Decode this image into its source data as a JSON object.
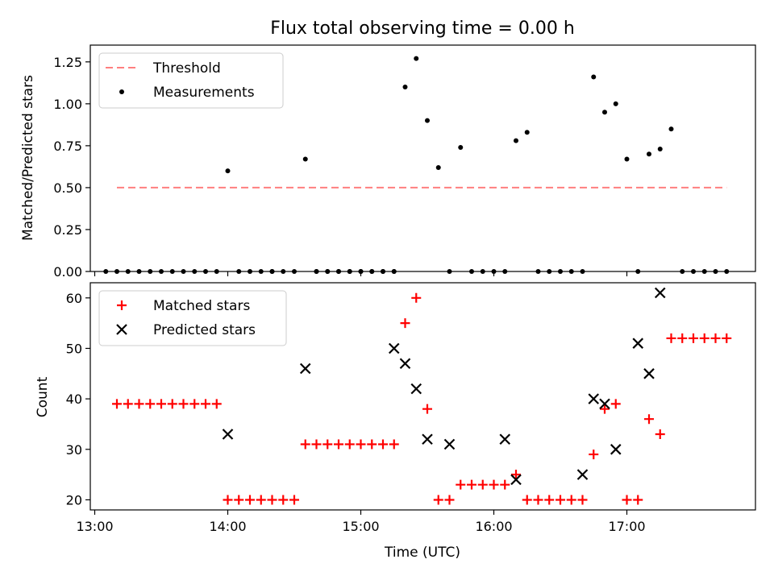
{
  "chart_data": [
    {
      "type": "scatter",
      "title": "Flux total observing time = 0.00 h",
      "xlabel": "",
      "ylabel": "Matched/Predicted stars",
      "ylim": [
        0,
        1.35
      ],
      "yticks": [
        0.0,
        0.25,
        0.5,
        0.75,
        1.0,
        1.25
      ],
      "ytick_labels": [
        "0.00",
        "0.25",
        "0.50",
        "0.75",
        "1.00",
        "1.25"
      ],
      "xlim": [
        "12:58",
        "17:58"
      ],
      "xticks": [
        "13:00",
        "14:00",
        "15:00",
        "16:00",
        "17:00"
      ],
      "legend": {
        "placement": "top-left",
        "entries": [
          {
            "name": "Threshold",
            "style": "dashed-line",
            "color": "#ff7f7f"
          },
          {
            "name": "Measurements",
            "style": "dot",
            "color": "#000000"
          }
        ]
      },
      "threshold": {
        "name": "Threshold",
        "y": 0.5,
        "x_start": "13:10",
        "x_end": "17:45",
        "color": "#ff7f7f"
      },
      "series": [
        {
          "name": "Measurements",
          "color": "#000000",
          "marker": "dot",
          "x": [
            "13:10",
            "13:15",
            "13:20",
            "13:25",
            "13:30",
            "13:35",
            "13:40",
            "13:45",
            "13:50",
            "13:55",
            "14:00",
            "14:05",
            "14:10",
            "14:15",
            "14:20",
            "14:25",
            "14:30",
            "14:35",
            "14:40",
            "14:45",
            "14:50",
            "14:55",
            "15:00",
            "15:05",
            "15:10",
            "15:15",
            "15:20",
            "15:25",
            "15:30",
            "15:35",
            "15:40",
            "15:45",
            "15:50",
            "15:55",
            "16:00",
            "16:05",
            "16:10",
            "16:15",
            "16:20",
            "16:25",
            "16:30",
            "16:35",
            "16:40",
            "16:45",
            "16:50",
            "16:55",
            "17:00",
            "17:05",
            "17:10",
            "17:15",
            "17:20",
            "17:25",
            "17:30",
            "17:35",
            "17:40",
            "17:45",
            "13:05",
            "14:20",
            "14:40",
            "14:45",
            "14:50",
            "14:55",
            "15:00",
            "15:05",
            "15:10",
            "15:15"
          ],
          "y": [
            0,
            0,
            0,
            0,
            0,
            0,
            0,
            0,
            0,
            0,
            0.6,
            0,
            0,
            0,
            0,
            0,
            0,
            0.67,
            0,
            0,
            0,
            0,
            0,
            0,
            0,
            0,
            1.1,
            1.27,
            0.9,
            0.62,
            0,
            0.74,
            0,
            0,
            0,
            0,
            0.78,
            0.83,
            0,
            0,
            0,
            0,
            0,
            1.16,
            0.95,
            1.0,
            0.67,
            0,
            0.7,
            0.73,
            0.85,
            0,
            0,
            0,
            0,
            0,
            0,
            0,
            0,
            0,
            0,
            0,
            0,
            0,
            0,
            0
          ]
        }
      ]
    },
    {
      "type": "scatter",
      "title": "",
      "xlabel": "Time (UTC)",
      "ylabel": "Count",
      "ylim": [
        18,
        63
      ],
      "yticks": [
        20,
        30,
        40,
        50,
        60
      ],
      "ytick_labels": [
        "20",
        "30",
        "40",
        "50",
        "60"
      ],
      "xlim": [
        "12:58",
        "17:58"
      ],
      "xticks": [
        "13:00",
        "14:00",
        "15:00",
        "16:00",
        "17:00"
      ],
      "xtick_labels": [
        "13:00",
        "14:00",
        "15:00",
        "16:00",
        "17:00"
      ],
      "legend": {
        "placement": "top-left",
        "entries": [
          {
            "name": "Matched stars",
            "style": "plus",
            "color": "#ff0000"
          },
          {
            "name": "Predicted stars",
            "style": "x",
            "color": "#000000"
          }
        ]
      },
      "series": [
        {
          "name": "Matched stars",
          "color": "#ff0000",
          "marker": "plus",
          "x": [
            "13:10",
            "13:15",
            "13:20",
            "13:25",
            "13:30",
            "13:35",
            "13:40",
            "13:45",
            "13:50",
            "13:55",
            "14:00",
            "14:05",
            "14:10",
            "14:15",
            "14:20",
            "14:25",
            "14:30",
            "14:35",
            "14:40",
            "14:45",
            "14:50",
            "14:55",
            "15:00",
            "15:05",
            "15:10",
            "15:15",
            "15:20",
            "15:25",
            "15:30",
            "15:35",
            "15:40",
            "15:45",
            "15:50",
            "15:55",
            "16:00",
            "16:05",
            "16:10",
            "16:15",
            "16:20",
            "16:25",
            "16:30",
            "16:35",
            "16:40",
            "16:45",
            "16:50",
            "16:55",
            "17:00",
            "17:05",
            "17:10",
            "17:15",
            "17:20",
            "17:25",
            "17:30",
            "17:35",
            "17:40",
            "17:45"
          ],
          "y": [
            39,
            39,
            39,
            39,
            39,
            39,
            39,
            39,
            39,
            39,
            20,
            20,
            20,
            20,
            20,
            20,
            20,
            31,
            31,
            31,
            31,
            31,
            31,
            31,
            31,
            31,
            55,
            60,
            38,
            20,
            20,
            23,
            23,
            23,
            23,
            23,
            25,
            20,
            20,
            20,
            20,
            20,
            20,
            29,
            38,
            39,
            20,
            20,
            36,
            33,
            52,
            52,
            52,
            52,
            52,
            52
          ]
        },
        {
          "name": "Predicted stars",
          "color": "#000000",
          "marker": "x",
          "x": [
            "14:00",
            "14:35",
            "15:15",
            "15:20",
            "15:25",
            "15:30",
            "15:40",
            "16:05",
            "16:10",
            "16:40",
            "16:45",
            "16:50",
            "16:55",
            "17:05",
            "17:10",
            "17:15"
          ],
          "y": [
            33,
            46,
            50,
            47,
            42,
            32,
            31,
            32,
            24,
            25,
            40,
            39,
            30,
            51,
            45,
            61
          ]
        }
      ]
    }
  ]
}
